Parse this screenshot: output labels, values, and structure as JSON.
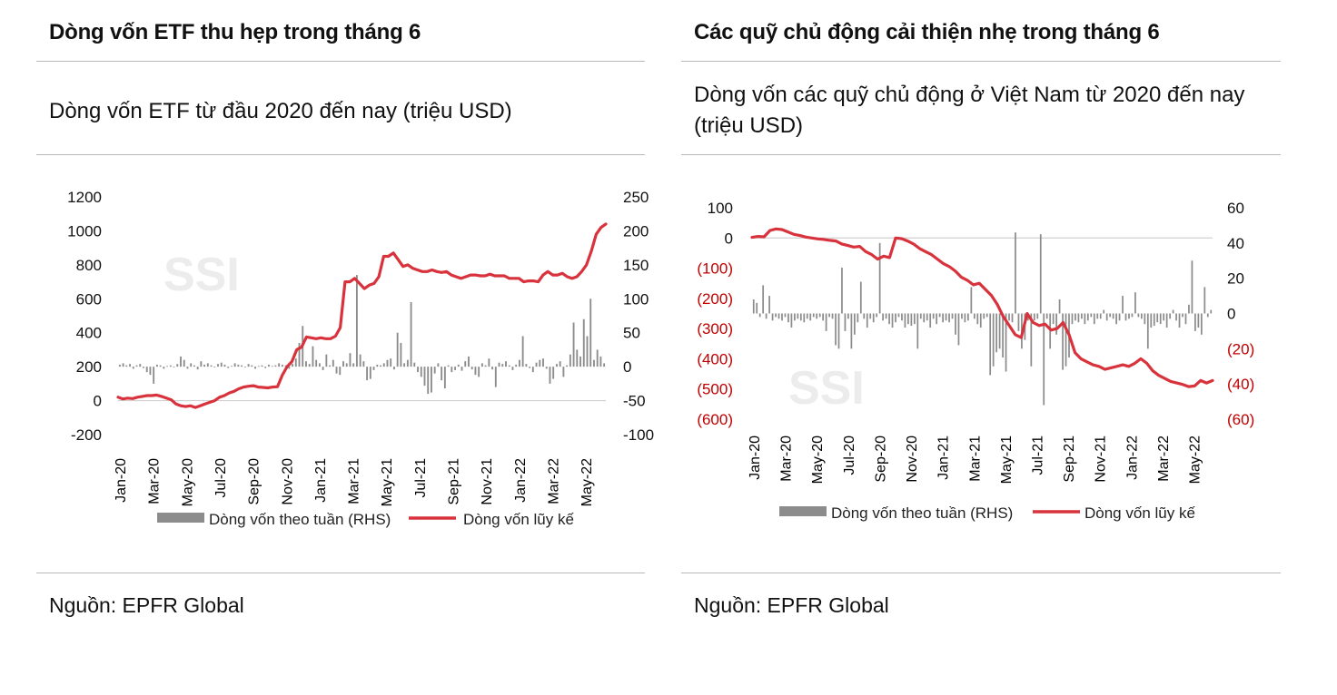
{
  "left": {
    "title": "Dòng vốn ETF thu hẹp trong tháng 6",
    "subtitle": "Dòng vốn ETF từ đầu 2020 đến nay (triệu USD)",
    "source": "Nguồn: EPFR Global",
    "watermark": "SSI"
  },
  "right": {
    "title": "Các quỹ chủ động cải thiện nhẹ trong tháng 6",
    "subtitle_line1": "Dòng vốn các quỹ chủ động ở Việt Nam từ 2020 đến nay",
    "subtitle_line2": "(triệu USD)",
    "source": "Nguồn: EPFR Global",
    "watermark": "SSI"
  },
  "colors": {
    "bar": "#8c8c8c",
    "line": "#d8323c",
    "negative_label": "#c00000"
  },
  "chart_data": [
    {
      "type": "bar+line",
      "title": "Dòng vốn ETF từ đầu 2020 đến nay (triệu USD)",
      "x_ticks": [
        "Jan-20",
        "Mar-20",
        "May-20",
        "Jul-20",
        "Sep-20",
        "Nov-20",
        "Jan-21",
        "Mar-21",
        "May-21",
        "Jul-21",
        "Sep-21",
        "Nov-21",
        "Jan-22",
        "Mar-22",
        "May-22"
      ],
      "left_axis": {
        "ticks": [
          "1200",
          "1000",
          "800",
          "600",
          "400",
          "200",
          "0",
          "-200"
        ],
        "range": [
          -200,
          1200
        ]
      },
      "right_axis": {
        "ticks": [
          "250",
          "200",
          "150",
          "100",
          "50",
          "0",
          "-50",
          "-100"
        ],
        "range": [
          -100,
          250
        ]
      },
      "legend": [
        "Dòng vốn theo tuần (RHS)",
        "Dòng vốn lũy kế"
      ],
      "series": [
        {
          "name": "Dòng vốn theo tuần (RHS)",
          "kind": "bar",
          "axis": "right",
          "values": [
            3,
            5,
            2,
            4,
            -3,
            2,
            4,
            -2,
            -8,
            -12,
            -25,
            3,
            2,
            -3,
            1,
            2,
            -1,
            4,
            15,
            10,
            -3,
            5,
            2,
            -4,
            8,
            3,
            5,
            2,
            -1,
            4,
            6,
            3,
            -2,
            1,
            5,
            3,
            2,
            -1,
            4,
            2,
            -3,
            1,
            2,
            -2,
            3,
            1,
            2,
            5,
            3,
            2,
            -3,
            4,
            12,
            35,
            60,
            8,
            4,
            30,
            10,
            5,
            -5,
            18,
            2,
            10,
            -10,
            -12,
            8,
            5,
            20,
            5,
            135,
            18,
            8,
            -20,
            -18,
            -5,
            3,
            2,
            5,
            10,
            12,
            -4,
            50,
            35,
            5,
            10,
            95,
            6,
            -8,
            -15,
            -28,
            -40,
            -38,
            -10,
            5,
            -20,
            -32,
            2,
            -8,
            -5,
            3,
            -6,
            8,
            15,
            -4,
            -12,
            -15,
            5,
            2,
            12,
            -4,
            -30,
            6,
            4,
            8,
            2,
            -5,
            3,
            10,
            45,
            4,
            -2,
            -8,
            6,
            10,
            12,
            -3,
            -25,
            -18,
            4,
            8,
            -15,
            2,
            18,
            65,
            25,
            15,
            70,
            45,
            100,
            10,
            25,
            15,
            5
          ]
        },
        {
          "name": "Dòng vốn lũy kế",
          "kind": "line",
          "axis": "left",
          "values": [
            20,
            10,
            15,
            12,
            20,
            25,
            30,
            30,
            33,
            25,
            15,
            5,
            -20,
            -30,
            -35,
            -30,
            -40,
            -30,
            -20,
            -10,
            0,
            20,
            30,
            45,
            55,
            70,
            80,
            85,
            88,
            80,
            78,
            75,
            80,
            82,
            150,
            200,
            230,
            300,
            315,
            375,
            370,
            365,
            370,
            365,
            365,
            380,
            430,
            700,
            700,
            720,
            690,
            660,
            680,
            690,
            730,
            850,
            850,
            870,
            830,
            790,
            800,
            780,
            770,
            760,
            760,
            770,
            760,
            755,
            760,
            740,
            730,
            720,
            730,
            740,
            740,
            735,
            735,
            745,
            735,
            735,
            735,
            720,
            720,
            720,
            700,
            705,
            705,
            700,
            740,
            760,
            740,
            740,
            750,
            730,
            720,
            730,
            760,
            800,
            880,
            980,
            1020,
            1040
          ]
        }
      ]
    },
    {
      "type": "bar+line",
      "title": "Dòng vốn các quỹ chủ động ở Việt Nam từ 2020 đến nay (triệu USD)",
      "x_ticks": [
        "Jan-20",
        "Mar-20",
        "May-20",
        "Jul-20",
        "Sep-20",
        "Nov-20",
        "Jan-21",
        "Mar-21",
        "May-21",
        "Jul-21",
        "Sep-21",
        "Nov-21",
        "Jan-22",
        "Mar-22",
        "May-22"
      ],
      "left_axis": {
        "ticks": [
          "100",
          "0",
          "(100)",
          "(200)",
          "(300)",
          "(400)",
          "(500)",
          "(600)"
        ],
        "range": [
          -600,
          100
        ]
      },
      "right_axis": {
        "ticks": [
          "60",
          "40",
          "20",
          "0",
          "(20)",
          "(40)",
          "(60)"
        ],
        "range": [
          -60,
          60
        ]
      },
      "legend": [
        "Dòng vốn theo tuần (RHS)",
        "Dòng vốn lũy kế"
      ],
      "series": [
        {
          "name": "Dòng vốn theo tuần (RHS)",
          "kind": "bar",
          "axis": "right",
          "values": [
            8,
            6,
            -2,
            16,
            -3,
            10,
            -4,
            -2,
            -3,
            -4,
            -2,
            -5,
            -8,
            -4,
            -3,
            -4,
            -5,
            -3,
            -4,
            -2,
            -3,
            -2,
            -4,
            -10,
            -2,
            -3,
            -18,
            -20,
            26,
            -10,
            -3,
            -20,
            -12,
            -5,
            18,
            -3,
            -8,
            -3,
            -5,
            -2,
            40,
            -4,
            -3,
            -6,
            -8,
            -5,
            -2,
            -4,
            -8,
            -6,
            -7,
            -6,
            -20,
            -3,
            -5,
            -4,
            -8,
            -3,
            -6,
            -2,
            -5,
            -4,
            -5,
            -3,
            -12,
            -18,
            -3,
            -5,
            -4,
            15,
            -3,
            -6,
            -8,
            -3,
            -2,
            -35,
            -30,
            -22,
            -20,
            -25,
            -33,
            -4,
            -5,
            46,
            -10,
            -20,
            -15,
            -4,
            -30,
            -4,
            -3,
            45,
            -52,
            -3,
            -20,
            -6,
            -12,
            8,
            -32,
            -30,
            -25,
            -6,
            -4,
            -5,
            -3,
            -6,
            -4,
            -2,
            -6,
            -3,
            -3,
            2,
            -4,
            -2,
            -3,
            -6,
            -4,
            10,
            -4,
            -3,
            -2,
            12,
            -2,
            -3,
            -6,
            -20,
            -8,
            -7,
            -5,
            -6,
            -4,
            -8,
            -3,
            2,
            -4,
            -8,
            -2,
            -6,
            5,
            30,
            -10,
            -8,
            -12,
            15,
            -2,
            2
          ]
        },
        {
          "name": "Dòng vốn lũy kế",
          "kind": "line",
          "axis": "left",
          "values": [
            2,
            5,
            4,
            25,
            30,
            28,
            20,
            12,
            8,
            3,
            0,
            -3,
            -5,
            -8,
            -10,
            -20,
            -25,
            -30,
            -28,
            -45,
            -55,
            -70,
            -60,
            -65,
            0,
            -2,
            -10,
            -20,
            -35,
            -45,
            -55,
            -70,
            -85,
            -95,
            -110,
            -130,
            -140,
            -155,
            -150,
            -170,
            -190,
            -220,
            -260,
            -290,
            -320,
            -330,
            -250,
            -280,
            -290,
            -285,
            -305,
            -300,
            -280,
            -320,
            -380,
            -400,
            -410,
            -420,
            -425,
            -435,
            -430,
            -425,
            -420,
            -425,
            -415,
            -400,
            -415,
            -440,
            -455,
            -465,
            -475,
            -480,
            -485,
            -492,
            -490,
            -472,
            -480,
            -472
          ]
        }
      ]
    }
  ]
}
